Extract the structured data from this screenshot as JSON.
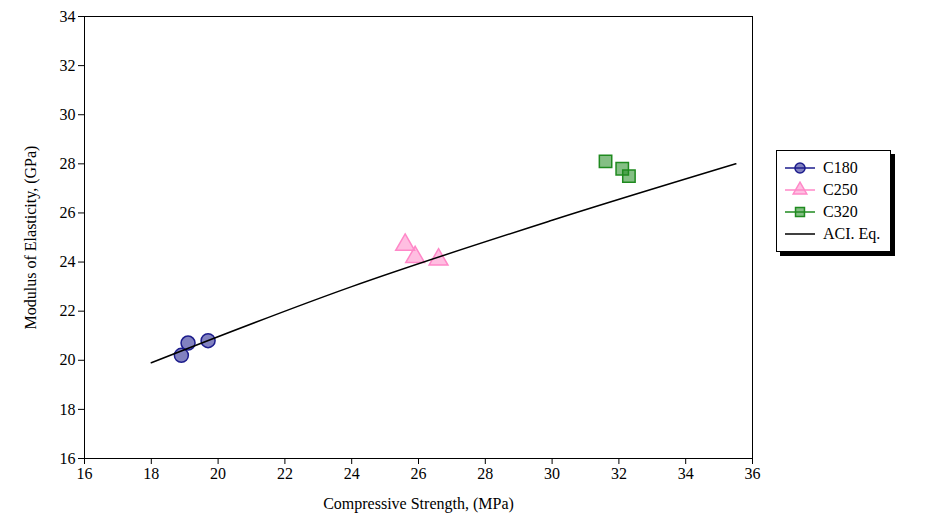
{
  "chart_data": {
    "type": "scatter",
    "xlabel": "Compressive Strength, (MPa)",
    "ylabel": "Modulus of Elasticity, (GPa)",
    "xlim": [
      16,
      36
    ],
    "xticks": [
      16,
      18,
      20,
      22,
      24,
      26,
      28,
      30,
      32,
      34,
      36
    ],
    "ylim": [
      16,
      34
    ],
    "yticks": [
      16,
      18,
      20,
      22,
      24,
      26,
      28,
      30,
      32,
      34
    ],
    "legend": "right",
    "series": [
      {
        "name": "C180",
        "type": "scatter",
        "color": "#1c1c8c",
        "marker": "circle",
        "x": [
          18.9,
          19.1,
          19.7
        ],
        "values": [
          20.2,
          20.7,
          20.8
        ]
      },
      {
        "name": "C250",
        "type": "scatter",
        "color": "#ff88c8",
        "marker": "triangle",
        "x": [
          25.6,
          25.9,
          26.6
        ],
        "values": [
          24.7,
          24.2,
          24.1
        ]
      },
      {
        "name": "C320",
        "type": "scatter",
        "color": "#1f8a1f",
        "marker": "square",
        "x": [
          31.6,
          32.1,
          32.3
        ],
        "values": [
          28.1,
          27.8,
          27.5
        ]
      },
      {
        "name": "ACI. Eq.",
        "type": "line",
        "color": "#000000",
        "line_style": "solid",
        "x": [
          18,
          24,
          30,
          35.5
        ],
        "values": [
          19.9,
          23.0,
          25.7,
          28.0
        ]
      }
    ]
  }
}
